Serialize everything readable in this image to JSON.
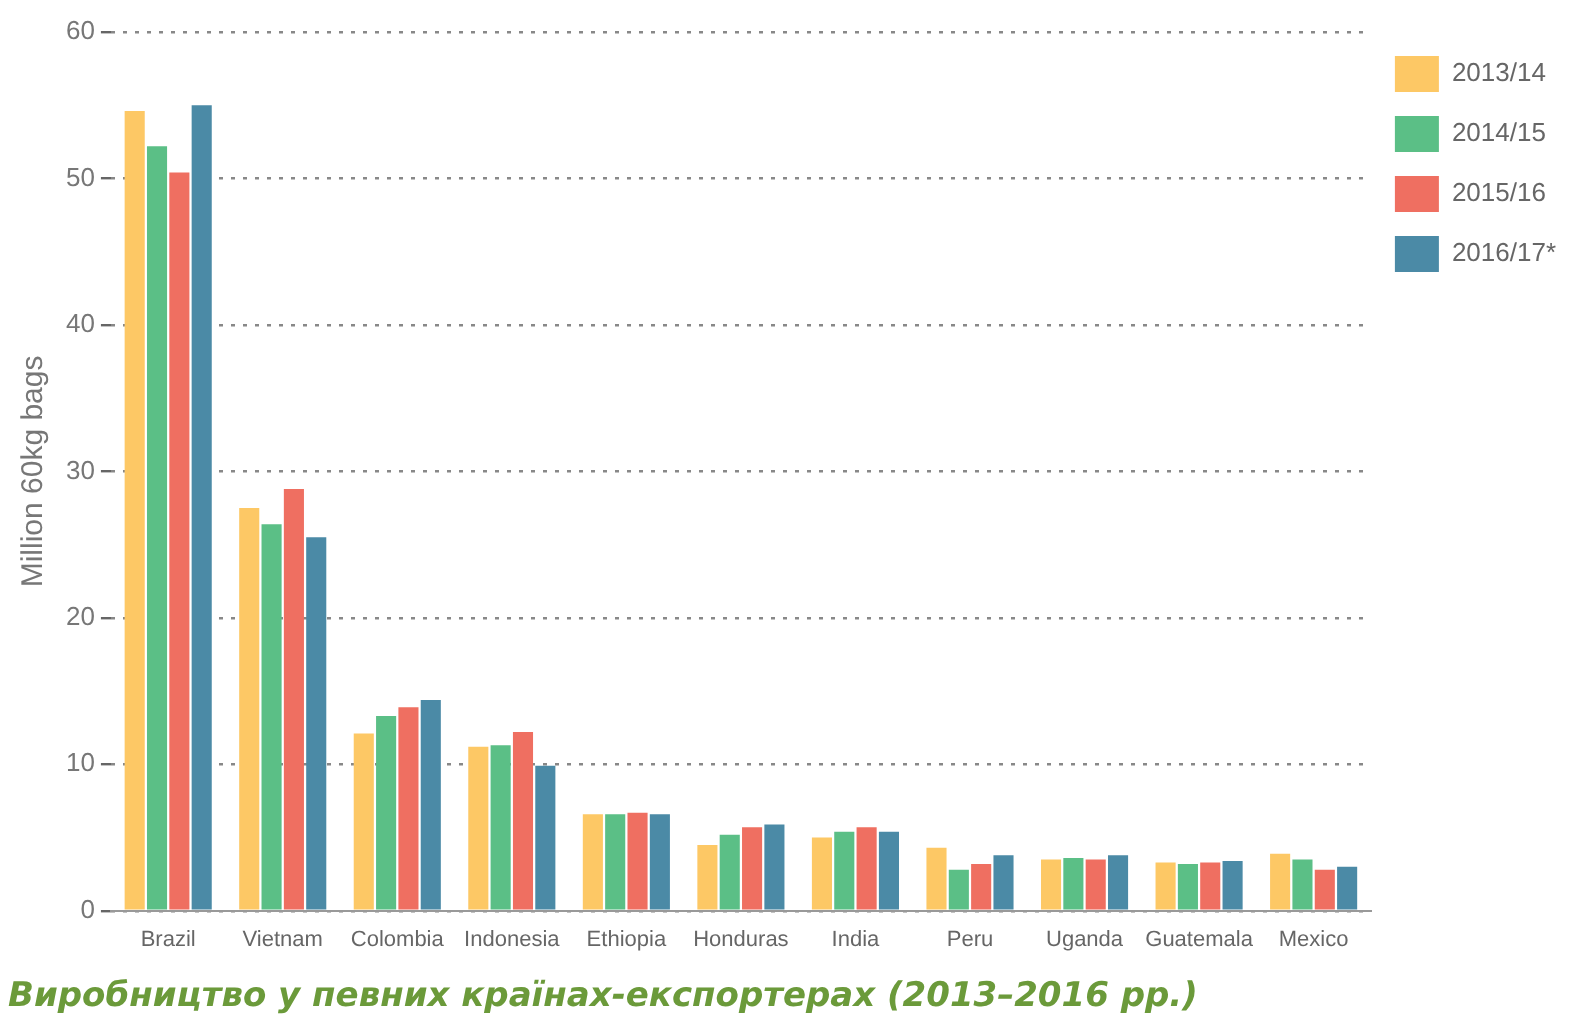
{
  "chart_data": {
    "type": "bar",
    "title": "Виробництво у певних країнах-експортерах (2013–2016 рр.)",
    "ylabel": "Million 60kg bags",
    "categories": [
      "Brazil",
      "Vietnam",
      "Colombia",
      "Indonesia",
      "Ethiopia",
      "Honduras",
      "India",
      "Peru",
      "Uganda",
      "Guatemala",
      "Mexico"
    ],
    "series": [
      {
        "name": "2013/14",
        "color": "#fdc865",
        "values": [
          54.6,
          27.5,
          12.1,
          11.2,
          6.6,
          4.5,
          5.0,
          4.3,
          3.5,
          3.3,
          3.9
        ]
      },
      {
        "name": "2014/15",
        "color": "#5bbf86",
        "values": [
          52.2,
          26.4,
          13.3,
          11.3,
          6.6,
          5.2,
          5.4,
          2.8,
          3.6,
          3.2,
          3.5
        ]
      },
      {
        "name": "2015/16",
        "color": "#ef6f61",
        "values": [
          50.4,
          28.8,
          13.9,
          12.2,
          6.7,
          5.7,
          5.7,
          3.2,
          3.5,
          3.3,
          2.8
        ]
      },
      {
        "name": "2016/17*",
        "color": "#4b8aa6",
        "values": [
          55.0,
          25.5,
          14.4,
          9.9,
          6.6,
          5.9,
          5.4,
          3.8,
          3.8,
          3.4,
          3.0
        ]
      }
    ],
    "ylim": [
      0,
      60
    ],
    "yticks": [
      0,
      10,
      20,
      30,
      40,
      50,
      60
    ],
    "grid": "y",
    "legend": "right"
  }
}
